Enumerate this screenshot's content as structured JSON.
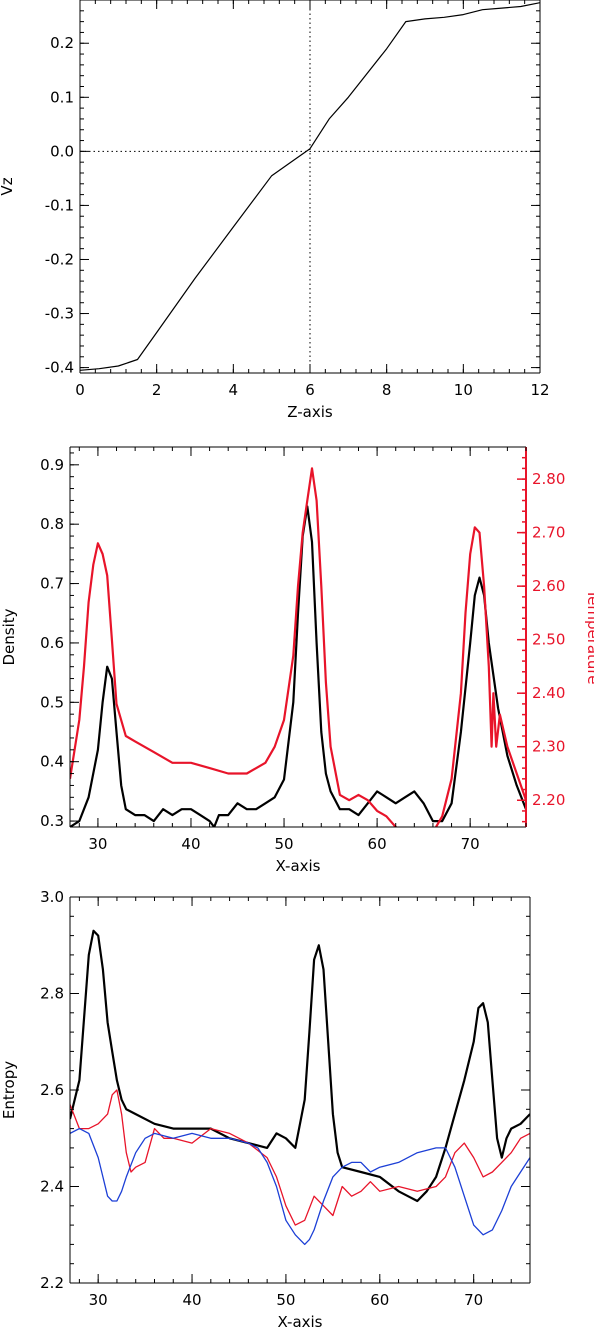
{
  "chart_data": [
    {
      "type": "line",
      "xlabel": "Z-axis",
      "ylabel": "Vz",
      "xlim": [
        0,
        12
      ],
      "ylim": [
        -0.41,
        0.28
      ],
      "xticks": [
        "0",
        "2",
        "4",
        "6",
        "8",
        "10",
        "12"
      ],
      "xtick_values": [
        0,
        2,
        4,
        6,
        8,
        10,
        12
      ],
      "yticks": [
        "-0.4",
        "-0.3",
        "-0.2",
        "-0.1",
        "0.0",
        "0.1",
        "0.2"
      ],
      "ytick_values": [
        -0.4,
        -0.3,
        -0.2,
        -0.1,
        0.0,
        0.1,
        0.2
      ],
      "reference_lines": {
        "x": 6,
        "y": 0.0
      },
      "series": [
        {
          "color": "#000000",
          "x": [
            0,
            0.5,
            1.0,
            1.5,
            2.0,
            3.0,
            4.0,
            5.0,
            5.5,
            6.0,
            6.5,
            7.0,
            8.0,
            8.5,
            9.0,
            9.5,
            10.0,
            10.5,
            11.0,
            11.5,
            12.0
          ],
          "y": [
            -0.405,
            -0.402,
            -0.397,
            -0.385,
            -0.335,
            -0.235,
            -0.14,
            -0.045,
            -0.02,
            0.005,
            0.06,
            0.1,
            0.19,
            0.24,
            0.245,
            0.248,
            0.253,
            0.262,
            0.265,
            0.268,
            0.275
          ]
        }
      ]
    },
    {
      "type": "line",
      "xlabel": "X-axis",
      "ylabel": "Density",
      "ylabel_right": "Temperature",
      "xlim": [
        27,
        76
      ],
      "ylim": [
        0.29,
        0.93
      ],
      "ylim_right": [
        2.15,
        2.86
      ],
      "xticks": [
        "30",
        "40",
        "50",
        "60",
        "70"
      ],
      "xtick_values": [
        30,
        40,
        50,
        60,
        70
      ],
      "yticks": [
        "0.3",
        "0.4",
        "0.5",
        "0.6",
        "0.7",
        "0.8",
        "0.9"
      ],
      "ytick_values": [
        0.3,
        0.4,
        0.5,
        0.6,
        0.7,
        0.8,
        0.9
      ],
      "yticks_right": [
        "2.20",
        "2.30",
        "2.40",
        "2.50",
        "2.60",
        "2.70",
        "2.80"
      ],
      "ytick_values_right": [
        2.2,
        2.3,
        2.4,
        2.5,
        2.6,
        2.7,
        2.8
      ],
      "right_axis_color": "#e8142a",
      "series": [
        {
          "color": "#000000",
          "axis": "left",
          "x": [
            27,
            28,
            29,
            30,
            30.5,
            31,
            31.5,
            32,
            32.5,
            33,
            34,
            35,
            36,
            37,
            38,
            39,
            40,
            41,
            42,
            42.5,
            43,
            44,
            45,
            46,
            47,
            48,
            49,
            50,
            51,
            51.5,
            52,
            52.5,
            53,
            53.5,
            54,
            54.5,
            55,
            56,
            57,
            58,
            59,
            60,
            61,
            62,
            63,
            64,
            65,
            66,
            67,
            68,
            69,
            70,
            70.5,
            71,
            71.5,
            72,
            73,
            74,
            75,
            76
          ],
          "y": [
            0.29,
            0.3,
            0.34,
            0.42,
            0.5,
            0.56,
            0.54,
            0.45,
            0.36,
            0.32,
            0.31,
            0.31,
            0.3,
            0.32,
            0.31,
            0.32,
            0.32,
            0.31,
            0.3,
            0.29,
            0.31,
            0.31,
            0.33,
            0.32,
            0.32,
            0.33,
            0.34,
            0.37,
            0.5,
            0.65,
            0.78,
            0.83,
            0.77,
            0.6,
            0.45,
            0.38,
            0.35,
            0.32,
            0.32,
            0.31,
            0.33,
            0.35,
            0.34,
            0.33,
            0.34,
            0.35,
            0.33,
            0.3,
            0.3,
            0.33,
            0.45,
            0.6,
            0.68,
            0.71,
            0.68,
            0.6,
            0.49,
            0.41,
            0.36,
            0.32
          ]
        },
        {
          "color": "#e8142a",
          "axis": "right",
          "x": [
            27,
            28,
            28.5,
            29,
            29.5,
            30,
            30.5,
            31,
            31.5,
            32,
            33,
            34,
            36,
            38,
            40,
            42,
            44,
            46,
            48,
            49,
            50,
            51,
            51.5,
            52,
            52.5,
            53,
            53.5,
            54,
            54.5,
            55,
            56,
            57,
            58,
            59,
            60,
            61,
            62,
            63,
            64,
            65,
            66,
            67,
            68,
            69,
            69.5,
            70,
            70.5,
            71,
            71.5,
            72,
            72.3,
            72.5,
            72.8,
            73.2,
            74,
            75,
            76
          ],
          "y": [
            2.24,
            2.35,
            2.45,
            2.57,
            2.64,
            2.68,
            2.66,
            2.62,
            2.5,
            2.38,
            2.32,
            2.31,
            2.29,
            2.27,
            2.27,
            2.26,
            2.25,
            2.25,
            2.27,
            2.3,
            2.35,
            2.47,
            2.6,
            2.7,
            2.76,
            2.82,
            2.76,
            2.6,
            2.42,
            2.3,
            2.21,
            2.2,
            2.21,
            2.2,
            2.18,
            2.17,
            2.15,
            2.14,
            2.13,
            2.13,
            2.14,
            2.17,
            2.24,
            2.4,
            2.55,
            2.66,
            2.71,
            2.7,
            2.6,
            2.45,
            2.3,
            2.4,
            2.3,
            2.36,
            2.3,
            2.25,
            2.2
          ]
        }
      ]
    },
    {
      "type": "line",
      "xlabel": "X-axis",
      "ylabel": "Entropy",
      "xlim": [
        27,
        76
      ],
      "ylim": [
        2.2,
        3.0
      ],
      "xticks": [
        "30",
        "40",
        "50",
        "60",
        "70"
      ],
      "xtick_values": [
        30,
        40,
        50,
        60,
        70
      ],
      "yticks": [
        "2.2",
        "2.4",
        "2.6",
        "2.8",
        "3.0"
      ],
      "ytick_values": [
        2.2,
        2.4,
        2.6,
        2.8,
        3.0
      ],
      "series": [
        {
          "color": "#000000",
          "x": [
            27,
            28,
            28.5,
            29,
            29.5,
            30,
            30.5,
            31,
            31.5,
            32,
            32.5,
            33,
            34,
            36,
            38,
            40,
            42,
            44,
            46,
            48,
            49,
            50,
            51,
            52,
            52.5,
            53,
            53.5,
            54,
            54.5,
            55,
            55.5,
            56,
            58,
            60,
            62,
            63,
            64,
            65,
            66,
            67,
            68,
            69,
            70,
            70.5,
            71,
            71.5,
            72,
            72.5,
            73,
            73.5,
            74,
            75,
            76
          ],
          "y": [
            2.54,
            2.62,
            2.75,
            2.88,
            2.93,
            2.92,
            2.85,
            2.74,
            2.68,
            2.62,
            2.58,
            2.56,
            2.55,
            2.53,
            2.52,
            2.52,
            2.52,
            2.5,
            2.49,
            2.48,
            2.51,
            2.5,
            2.48,
            2.58,
            2.72,
            2.87,
            2.9,
            2.85,
            2.7,
            2.55,
            2.47,
            2.44,
            2.43,
            2.42,
            2.39,
            2.38,
            2.37,
            2.39,
            2.42,
            2.48,
            2.55,
            2.62,
            2.7,
            2.77,
            2.78,
            2.74,
            2.62,
            2.5,
            2.46,
            2.5,
            2.52,
            2.53,
            2.55
          ]
        },
        {
          "color": "#e8142a",
          "x": [
            27,
            28,
            29,
            30,
            31,
            31.5,
            32,
            32.5,
            33,
            33.5,
            34,
            35,
            36,
            37,
            38,
            40,
            42,
            44,
            46,
            48,
            49,
            50,
            51,
            52,
            53,
            54,
            55,
            56,
            57,
            58,
            59,
            60,
            62,
            64,
            66,
            67,
            68,
            69,
            70,
            71,
            72,
            73,
            74,
            75,
            76
          ],
          "y": [
            2.57,
            2.52,
            2.52,
            2.53,
            2.55,
            2.59,
            2.6,
            2.55,
            2.47,
            2.43,
            2.44,
            2.45,
            2.52,
            2.5,
            2.5,
            2.49,
            2.52,
            2.51,
            2.49,
            2.46,
            2.42,
            2.36,
            2.32,
            2.33,
            2.38,
            2.36,
            2.34,
            2.4,
            2.38,
            2.39,
            2.41,
            2.39,
            2.4,
            2.39,
            2.4,
            2.42,
            2.47,
            2.49,
            2.46,
            2.42,
            2.43,
            2.45,
            2.47,
            2.5,
            2.51
          ]
        },
        {
          "color": "#1c3fd6",
          "x": [
            27,
            28,
            29,
            30,
            30.5,
            31,
            31.5,
            32,
            32.5,
            33,
            34,
            35,
            36,
            38,
            40,
            42,
            44,
            46,
            47,
            48,
            49,
            50,
            51,
            52,
            52.5,
            53,
            54,
            55,
            56,
            57,
            58,
            59,
            60,
            62,
            64,
            66,
            67,
            68,
            69,
            70,
            71,
            72,
            73,
            74,
            75,
            76
          ],
          "y": [
            2.51,
            2.52,
            2.51,
            2.46,
            2.42,
            2.38,
            2.37,
            2.37,
            2.39,
            2.42,
            2.47,
            2.5,
            2.51,
            2.5,
            2.51,
            2.5,
            2.5,
            2.49,
            2.48,
            2.45,
            2.4,
            2.33,
            2.3,
            2.28,
            2.29,
            2.31,
            2.37,
            2.42,
            2.44,
            2.45,
            2.45,
            2.43,
            2.44,
            2.45,
            2.47,
            2.48,
            2.48,
            2.44,
            2.38,
            2.32,
            2.3,
            2.31,
            2.35,
            2.4,
            2.43,
            2.46
          ]
        }
      ]
    }
  ]
}
